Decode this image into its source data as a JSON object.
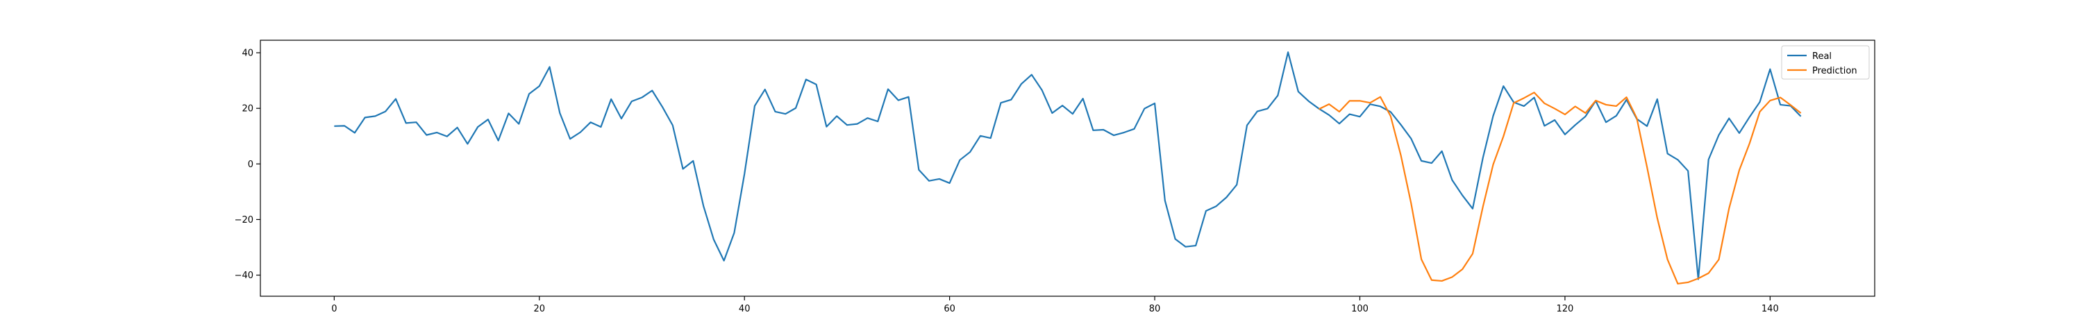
{
  "chart_data": {
    "type": "line",
    "title": "",
    "xlabel": "",
    "ylabel": "",
    "xlim": [
      -7.2,
      150.2
    ],
    "ylim": [
      -47.6,
      44.5
    ],
    "xticks": [
      0,
      20,
      40,
      60,
      80,
      100,
      120,
      140
    ],
    "yticks": [
      -40,
      -20,
      0,
      20,
      40
    ],
    "grid": false,
    "legend_position": "top-right",
    "series": [
      {
        "name": "Real",
        "color": "#1f77b4",
        "x_start": 0,
        "values": [
          13.6,
          13.7,
          11.2,
          16.7,
          17.2,
          18.9,
          23.4,
          14.7,
          15.0,
          10.4,
          11.3,
          9.9,
          13.1,
          7.2,
          13.3,
          16.0,
          8.4,
          18.2,
          14.4,
          25.2,
          28.0,
          34.9,
          18.3,
          9.0,
          11.4,
          15.0,
          13.3,
          23.3,
          16.3,
          22.5,
          23.9,
          26.4,
          20.5,
          13.9,
          -1.8,
          1.1,
          -15.1,
          -27.2,
          -34.8,
          -24.8,
          -3.6,
          20.9,
          26.8,
          18.8,
          18.0,
          20.1,
          30.4,
          28.6,
          13.4,
          17.2,
          14.0,
          14.4,
          16.5,
          15.3,
          26.9,
          22.9,
          24.1,
          -2.1,
          -6.1,
          -5.4,
          -6.9,
          1.4,
          4.3,
          10.1,
          9.3,
          22.0,
          23.1,
          28.8,
          32.1,
          26.6,
          18.3,
          21.0,
          18.0,
          23.5,
          12.1,
          12.3,
          10.3,
          11.3,
          12.6,
          19.9,
          21.8,
          -13.2,
          -27.0,
          -29.8,
          -29.4,
          -16.9,
          -15.2,
          -12.0,
          -7.5,
          13.9,
          18.9,
          19.9,
          24.6,
          40.2,
          26.0,
          22.6,
          19.9,
          17.6,
          14.5,
          17.9,
          17.0,
          21.5,
          20.7,
          18.7,
          14.1,
          9.1,
          1.1,
          0.3,
          4.6,
          -5.8,
          -11.3,
          -16.1,
          2.2,
          17.3,
          28.0,
          22.2,
          20.8,
          23.9,
          13.7,
          15.8,
          10.6,
          14.0,
          17.1,
          22.7,
          15.0,
          17.3,
          23.1,
          16.2,
          13.6,
          23.3,
          3.7,
          1.5,
          -2.5,
          -41.5,
          1.6,
          10.4,
          16.4,
          11.1,
          16.9,
          22.3,
          34.1,
          21.3,
          20.9,
          17.1
        ]
      },
      {
        "name": "Prediction",
        "color": "#ff7f0e",
        "x_start": 96,
        "values": [
          19.7,
          21.5,
          18.8,
          22.7,
          22.7,
          22.0,
          24.1,
          17.2,
          3.1,
          -14.2,
          -34.3,
          -41.8,
          -42.1,
          -40.7,
          -37.9,
          -32.3,
          -15.4,
          -0.2,
          9.9,
          21.9,
          23.7,
          25.7,
          21.8,
          19.9,
          17.8,
          20.7,
          18.3,
          22.8,
          21.3,
          20.8,
          24.0,
          16.5,
          -1.1,
          -19.5,
          -34.4,
          -43.1,
          -42.6,
          -41.2,
          -39.3,
          -34.4,
          -16.0,
          -2.2,
          7.4,
          18.8,
          22.8,
          23.9,
          21.2,
          18.3
        ]
      }
    ]
  }
}
